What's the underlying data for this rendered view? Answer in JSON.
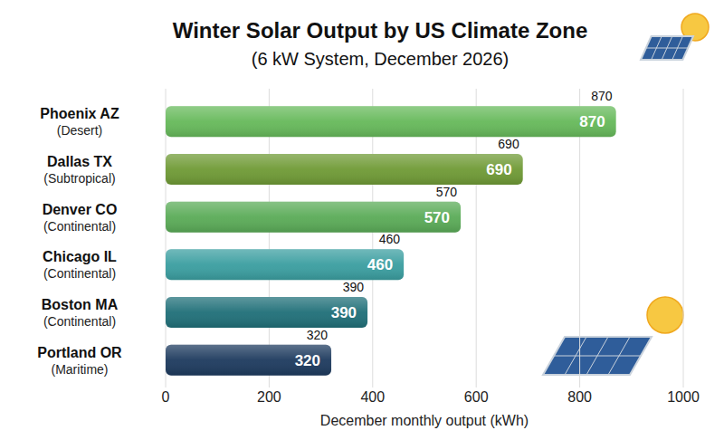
{
  "chart_data": {
    "type": "bar",
    "title": "Winter Solar Output by US Climate Zone",
    "subtitle": "(6 kW System, December 2026)",
    "orientation": "horizontal",
    "categories": [
      "Phoenix AZ",
      "Dallas TX",
      "Denver CO",
      "Chicago IL",
      "Boston MA",
      "Portland OR"
    ],
    "zones": [
      "(Desert)",
      "(Subtropical)",
      "(Continental)",
      "(Continental)",
      "(Continental)",
      "(Maritime)"
    ],
    "values": [
      870,
      690,
      570,
      460,
      390,
      320
    ],
    "colors": [
      "#66b95a",
      "#6f9a35",
      "#5aab57",
      "#3a9ea0",
      "#1f6f78",
      "#1d3a5e"
    ],
    "xlim": [
      0,
      1000
    ],
    "xticks": [
      0,
      200,
      400,
      600,
      800,
      1000
    ],
    "xlabel": "December monthly output (kWh)",
    "grid": true,
    "data_labels": true
  }
}
